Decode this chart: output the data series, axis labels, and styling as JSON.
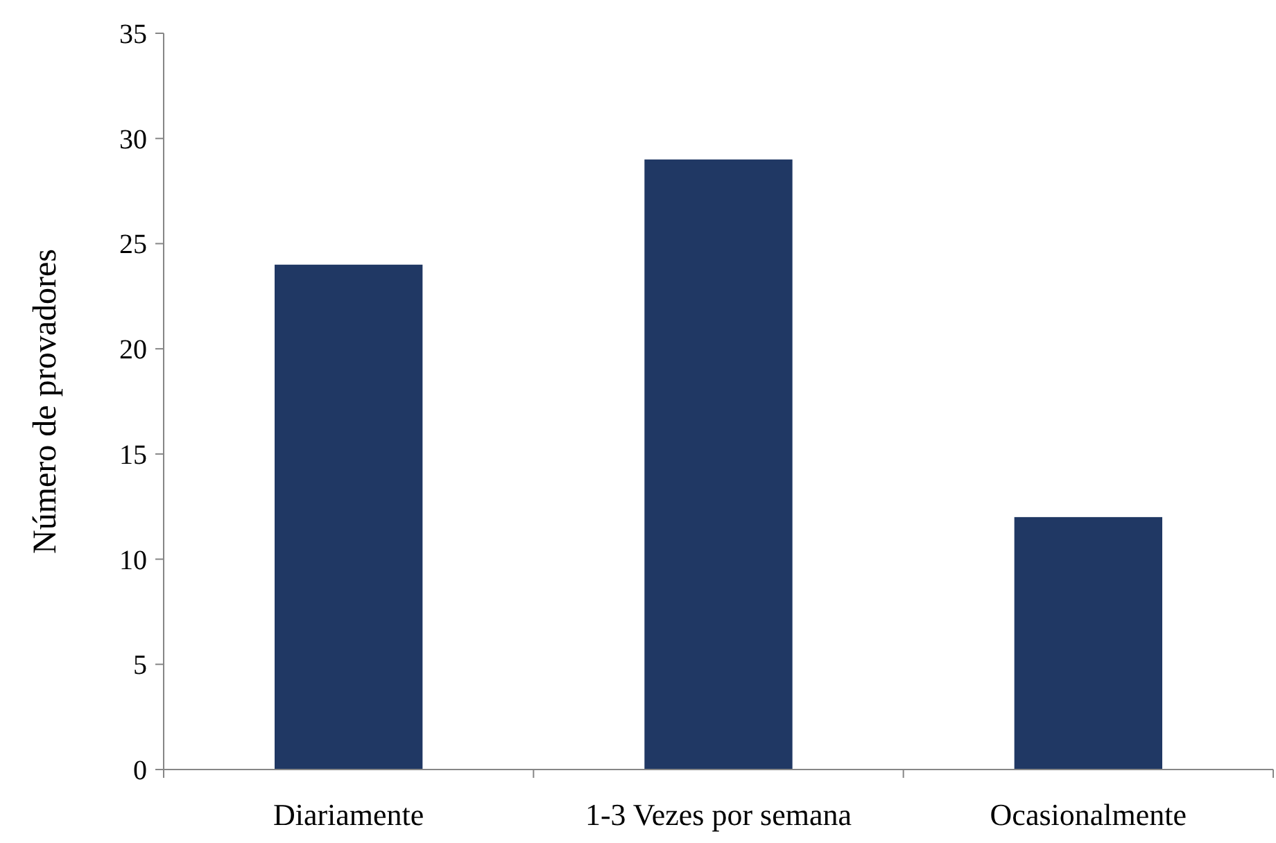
{
  "chart_data": {
    "type": "bar",
    "ylabel": "Número de provadores",
    "categories": [
      "Diariamente",
      "1-3 Vezes por semana",
      "Ocasionalmente"
    ],
    "values": [
      24,
      29,
      12
    ],
    "color": "#203864",
    "ylim": [
      0,
      35
    ],
    "yticks": [
      0,
      5,
      10,
      15,
      20,
      25,
      30,
      35
    ],
    "grid": false
  }
}
